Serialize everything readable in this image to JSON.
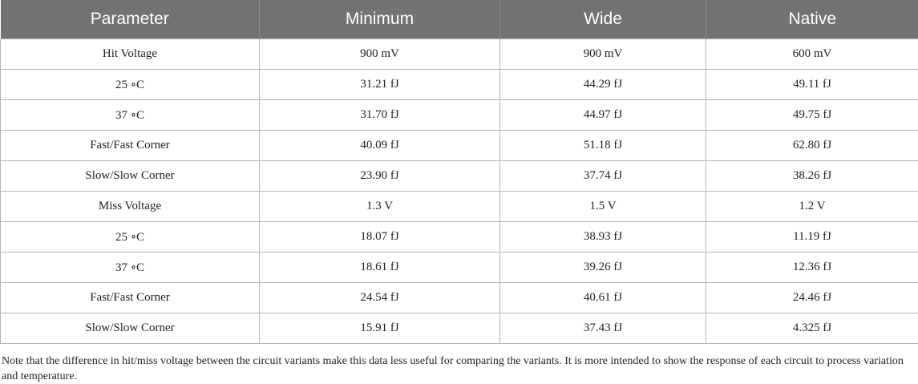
{
  "table": {
    "headers": [
      "Parameter",
      "Minimum",
      "Wide",
      "Native"
    ],
    "rows": [
      [
        "Hit Voltage",
        "900 mV",
        "900 mV",
        "600 mV"
      ],
      [
        "25 ∘C",
        "31.21 fJ",
        "44.29 fJ",
        "49.11 fJ"
      ],
      [
        "37 ∘C",
        "31.70 fJ",
        "44.97 fJ",
        "49.75 fJ"
      ],
      [
        "Fast/Fast Corner",
        "40.09 fJ",
        "51.18 fJ",
        "62.80 fJ"
      ],
      [
        "Slow/Slow Corner",
        "23.90 fJ",
        "37.74 fJ",
        "38.26 fJ"
      ],
      [
        "Miss Voltage",
        "1.3 V",
        "1.5 V",
        "1.2 V"
      ],
      [
        "25 ∘C",
        "18.07 fJ",
        "38.93 fJ",
        "11.19 fJ"
      ],
      [
        "37 ∘C",
        "18.61 fJ",
        "39.26 fJ",
        "12.36 fJ"
      ],
      [
        "Fast/Fast Corner",
        "24.54 fJ",
        "40.61 fJ",
        "24.46 fJ"
      ],
      [
        "Slow/Slow Corner",
        "15.91 fJ",
        "37.43 fJ",
        "4.325 fJ"
      ]
    ]
  },
  "note": "Note that the difference in hit/miss voltage between the circuit variants make this data less useful for comparing the variants. It is more intended to show the response of each circuit to process variation  and temperature.",
  "colors": {
    "header_bg": "#737373",
    "header_text": "#ffffff",
    "grid": "#b5b5b5"
  }
}
